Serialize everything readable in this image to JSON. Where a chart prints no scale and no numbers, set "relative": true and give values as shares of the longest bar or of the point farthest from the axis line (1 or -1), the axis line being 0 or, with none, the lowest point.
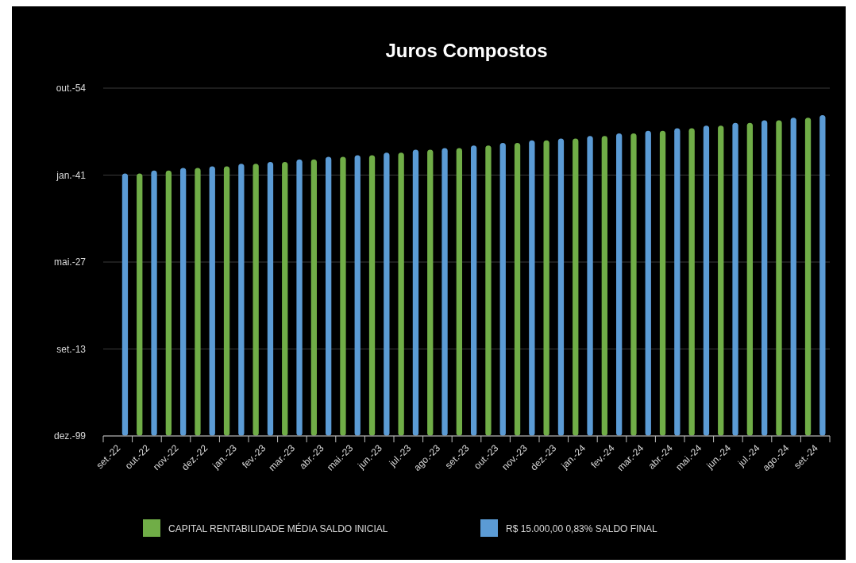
{
  "chart_data": {
    "type": "bar",
    "title": "Juros Compostos",
    "relative": true,
    "categories": [
      "set.-22",
      "out.-22",
      "nov.-22",
      "dez.-22",
      "jan.-23",
      "fev.-23",
      "mar.-23",
      "abr.-23",
      "mai.-23",
      "jun.-23",
      "jul.-23",
      "ago.-23",
      "set.-23",
      "out.-23",
      "nov.-23",
      "dez.-23",
      "jan.-24",
      "fev.-24",
      "mar.-24",
      "abr.-24",
      "mai.-24",
      "jun.-24",
      "jul.-24",
      "ago.-24",
      "set.-24"
    ],
    "series": [
      {
        "name": "CAPITAL RENTABILIDADE MÉDIA SALDO INICIAL",
        "color": "#70ad47",
        "values": [
          null,
          0.818,
          0.827,
          0.835,
          0.84,
          0.848,
          0.854,
          0.862,
          0.87,
          0.875,
          0.883,
          0.892,
          0.897,
          0.905,
          0.913,
          0.921,
          0.927,
          0.935,
          0.943,
          0.951,
          0.959,
          0.967,
          0.976,
          0.984,
          0.992
        ]
      },
      {
        "name": "R$ 15.000,00  0,83% SALDO FINAL",
        "color": "#5b9bd5",
        "values": [
          0.818,
          0.827,
          0.835,
          0.84,
          0.848,
          0.854,
          0.862,
          0.87,
          0.875,
          0.883,
          0.892,
          0.897,
          0.905,
          0.913,
          0.921,
          0.927,
          0.935,
          0.943,
          0.951,
          0.959,
          0.967,
          0.976,
          0.984,
          0.992,
          1
        ]
      }
    ],
    "annotations": [
      "dez.-99",
      "set.-13",
      "mai.-27",
      "jan.-41",
      "out.-54"
    ],
    "grid": "y",
    "legend": "bottom"
  }
}
